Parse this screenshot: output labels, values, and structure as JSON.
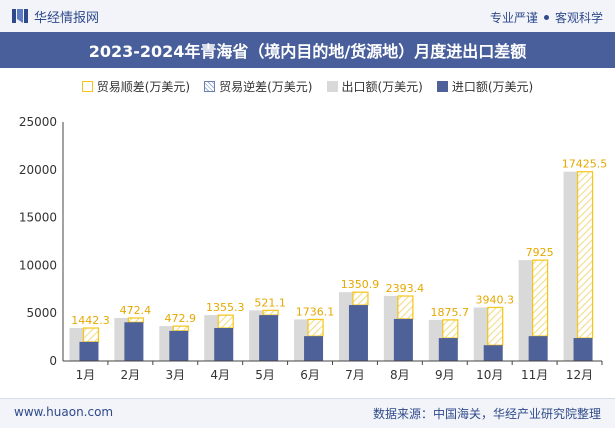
{
  "header": {
    "brand_name": "华经情报网",
    "tagline_left": "专业严谨",
    "tagline_right": "客观科学"
  },
  "title": "2023-2024年青海省（境内目的地/货源地）月度进出口差额",
  "legend": {
    "surplus": "贸易顺差(万美元)",
    "deficit": "贸易逆差(万美元)",
    "export": "出口额(万美元)",
    "import": "进口额(万美元)"
  },
  "footer": {
    "website": "www.huaon.com",
    "source": "数据来源：中国海关，华经产业研究院整理"
  },
  "colors": {
    "title_band": "#485f9b",
    "surplus": "#f5c518",
    "export": "#d9d9d9",
    "import": "#4f6199",
    "label": "#e6a800"
  },
  "chart_data": {
    "type": "bar",
    "categories": [
      "1月",
      "2月",
      "3月",
      "4月",
      "5月",
      "6月",
      "7月",
      "8月",
      "9月",
      "10月",
      "11月",
      "12月"
    ],
    "series": [
      {
        "name": "出口额(万美元)",
        "values": [
          3450,
          4500,
          3650,
          4800,
          5300,
          4350,
          7200,
          6800,
          4300,
          5600,
          10550,
          19800
        ]
      },
      {
        "name": "进口额(万美元)",
        "values": [
          2000,
          4050,
          3150,
          3450,
          4800,
          2600,
          5850,
          4400,
          2400,
          1650,
          2600,
          2400
        ]
      },
      {
        "name": "贸易顺差(万美元)",
        "values": [
          1442.3,
          472.4,
          472.9,
          1355.3,
          521.1,
          1736.1,
          1350.9,
          2393.4,
          1875.7,
          3940.3,
          7925,
          17425.5
        ]
      }
    ],
    "data_labels": [
      "1442.3",
      "472.4",
      "472.9",
      "1355.3",
      "521.1",
      "1736.1",
      "1350.9",
      "2393.4",
      "1875.7",
      "3940.3",
      "7925",
      "17425.5"
    ],
    "y_ticks": [
      "0",
      "5000",
      "10000",
      "15000",
      "20000",
      "25000"
    ],
    "ylim": [
      0,
      25000
    ],
    "grid": false,
    "legend_position": "top"
  }
}
